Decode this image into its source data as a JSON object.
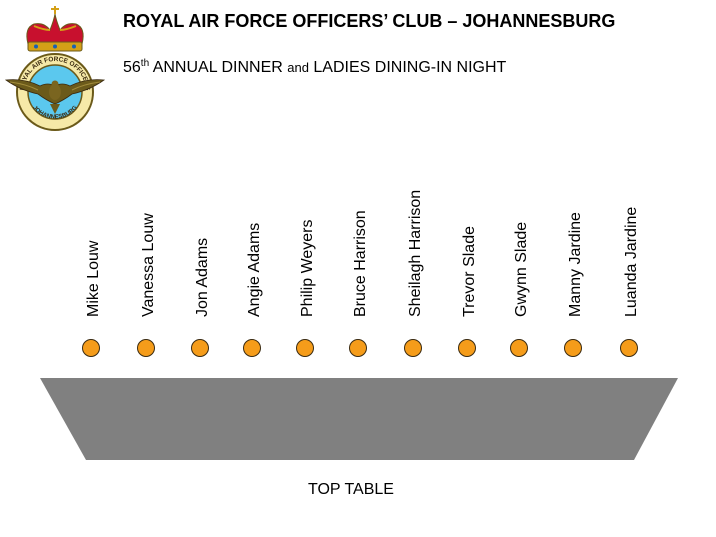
{
  "header": {
    "title": "ROYAL AIR FORCE OFFICERS’ CLUB – JOHANNESBURG",
    "subtitle": {
      "ordinal_number": "56",
      "ordinal_suffix": "th",
      "part1": " ANNUAL DINNER ",
      "connector": "and",
      "part2": " LADIES DINING-IN NIGHT"
    }
  },
  "logo": {
    "ring_text_top": "ROYAL AIR FORCE OFFICERS",
    "ring_text_bottom": "JOHANNESBURG",
    "ring_text_left": "ROYAL",
    "ring_text_right": "CLUB"
  },
  "guests": [
    "Mike Louw",
    "Vanessa Louw",
    "Jon Adams",
    "Angie Adams",
    "Philip Weyers",
    "Bruce Harrison",
    "Sheilagh Harrison",
    "Trevor Slade",
    "Gwynn Slade",
    "Manny Jardine",
    "Luanda Jardine"
  ],
  "table": {
    "label": "TOP TABLE",
    "fill_color": "#808080"
  },
  "seat_color": "#f59c1a"
}
